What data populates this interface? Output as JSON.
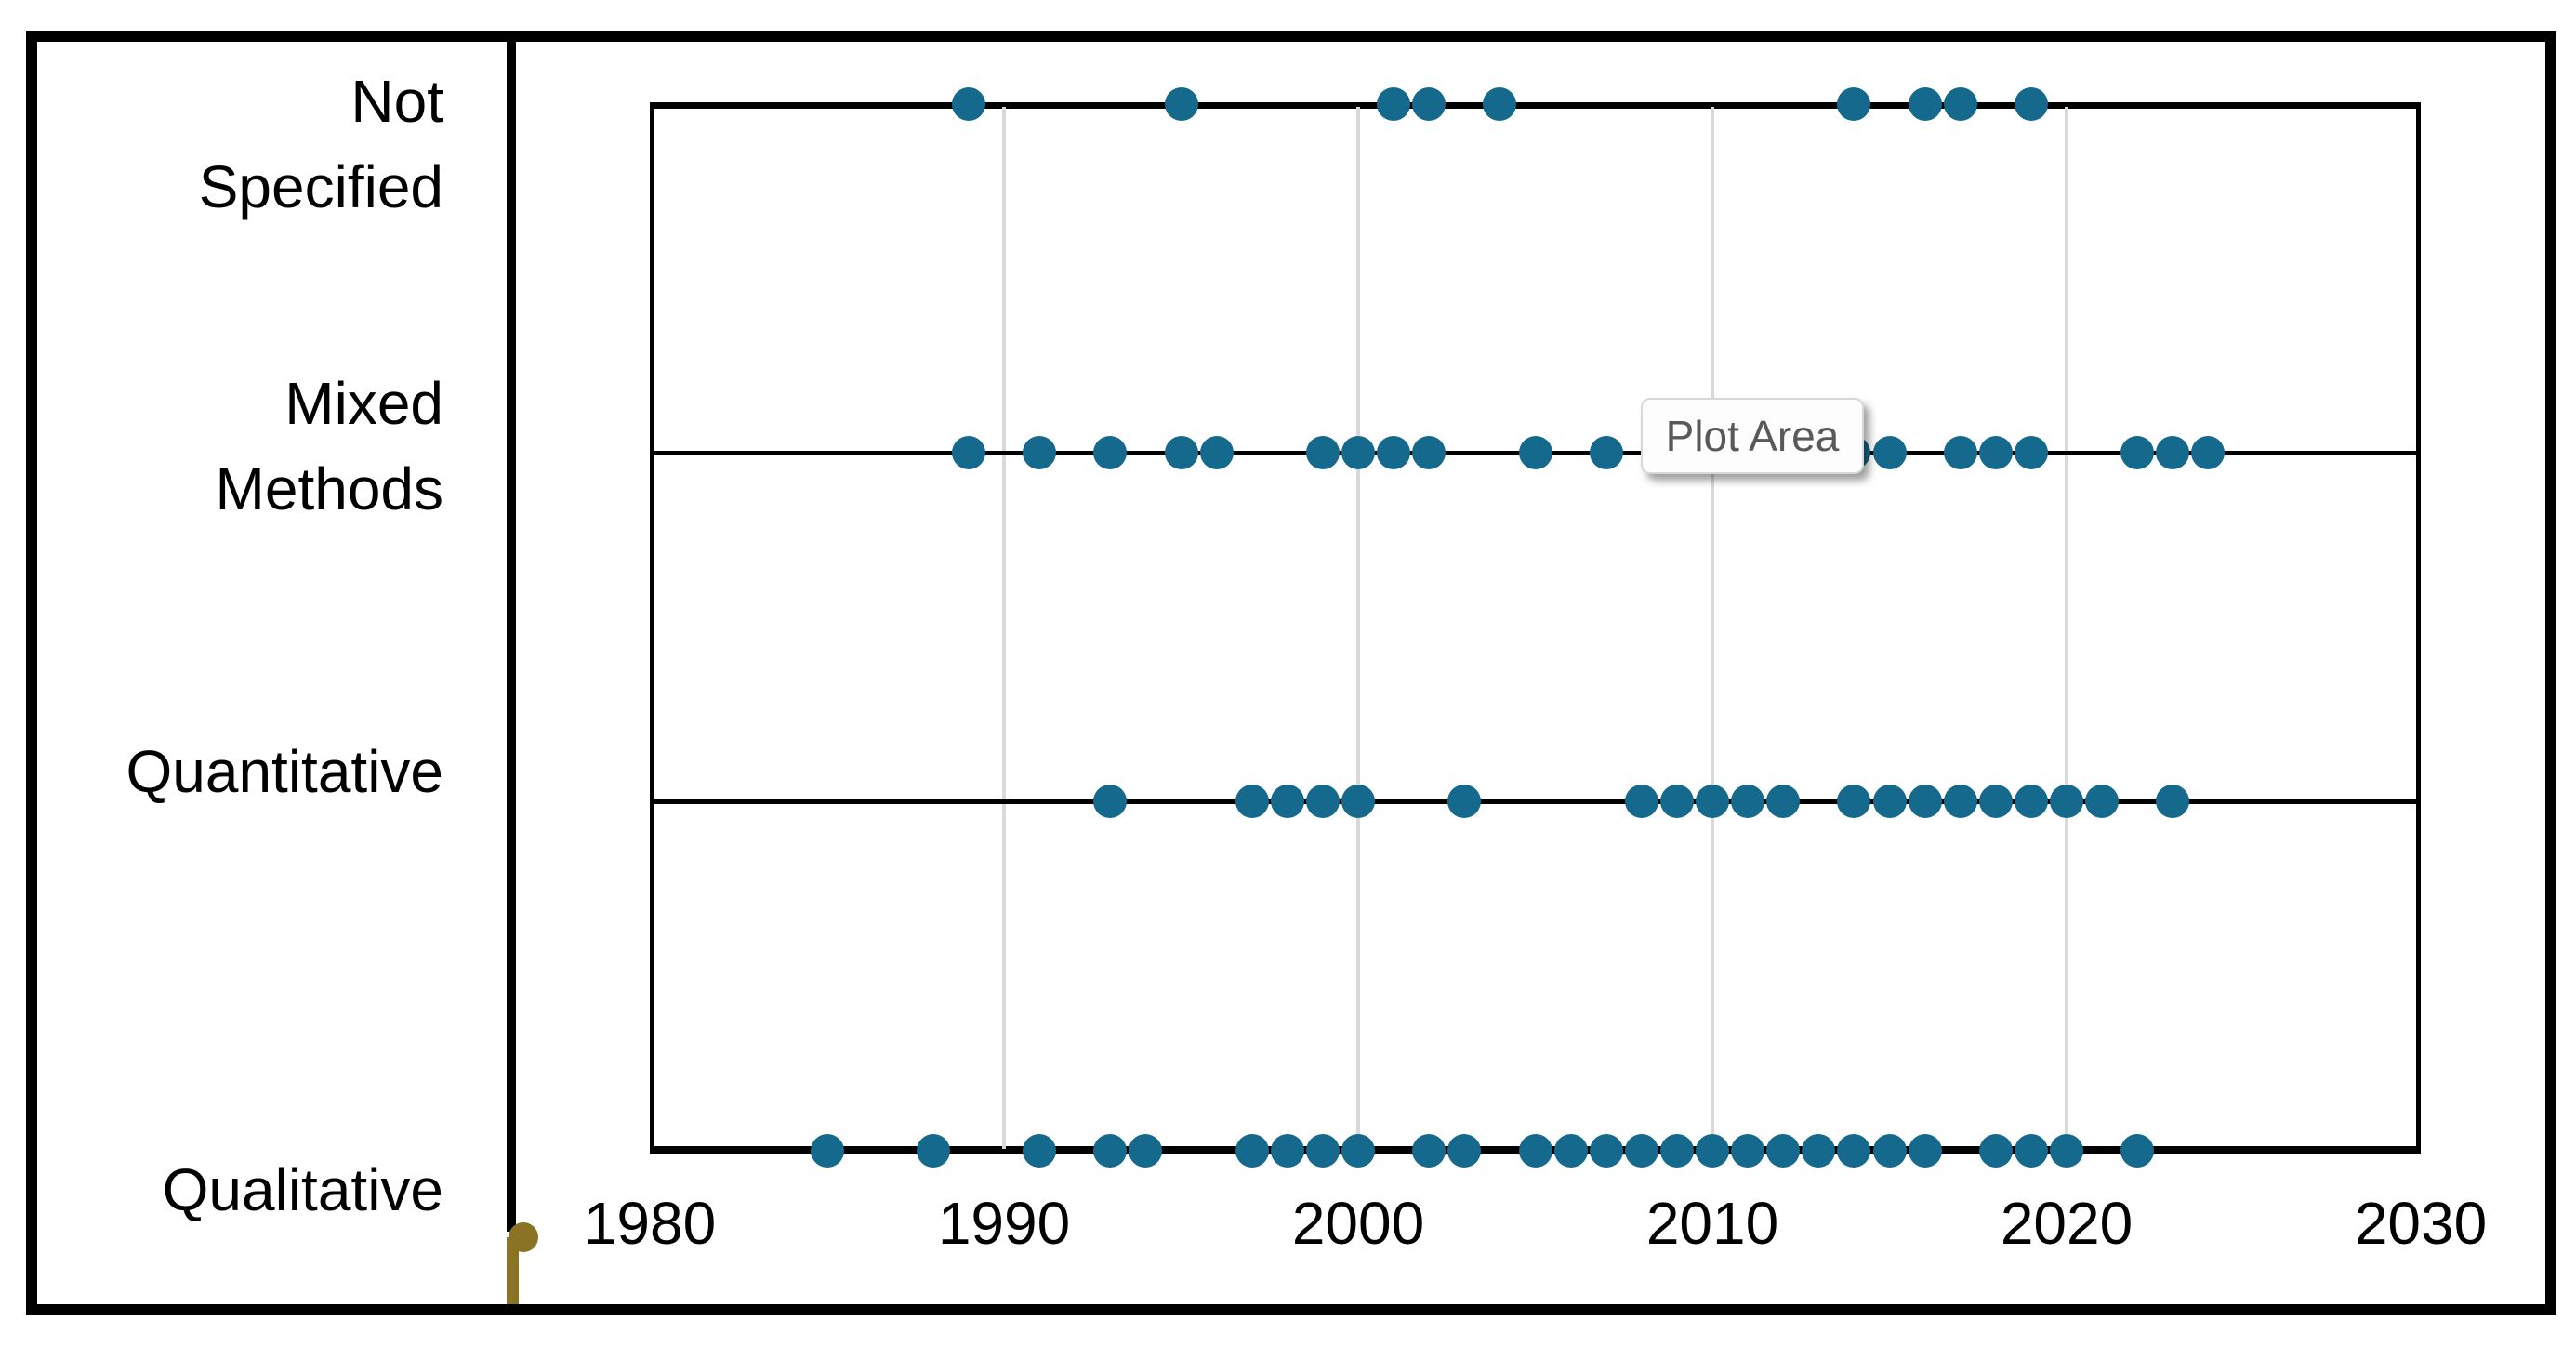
{
  "tooltip": {
    "label": "Plot Area"
  },
  "chart_data": {
    "type": "scatter",
    "subtype": "categorical-dot-timeline",
    "title": "",
    "xlabel": "",
    "ylabel": "",
    "x_axis": {
      "min": 1980,
      "max": 2030,
      "tick_interval": 10,
      "tick_labels": [
        "1980",
        "1990",
        "2000",
        "2010",
        "2020",
        "2030"
      ]
    },
    "gridline_years": [
      1990,
      2000,
      2010,
      2020
    ],
    "grid": "vertical gridlines at decades",
    "legend": "none",
    "categories": [
      "Not Specified",
      "Mixed Methods",
      "Quantitative",
      "Qualitative"
    ],
    "category_label_lines": [
      [
        "Not",
        "Specified"
      ],
      [
        "Mixed",
        "Methods"
      ],
      [
        "Quantitative"
      ],
      [
        "Qualitative"
      ]
    ],
    "series": [
      {
        "name": "Not Specified",
        "years": [
          1989,
          1995,
          2001,
          2002,
          2004,
          2014,
          2016,
          2017,
          2019
        ]
      },
      {
        "name": "Mixed Methods",
        "years": [
          1989,
          1991,
          1993,
          1995,
          1996,
          1999,
          2000,
          2001,
          2002,
          2005,
          2007,
          2014,
          2015,
          2017,
          2018,
          2019,
          2022,
          2023,
          2024
        ]
      },
      {
        "name": "Quantitative",
        "years": [
          1993,
          1997,
          1998,
          1999,
          2000,
          2003,
          2008,
          2009,
          2010,
          2011,
          2012,
          2014,
          2015,
          2016,
          2017,
          2018,
          2019,
          2020,
          2021,
          2023
        ]
      },
      {
        "name": "Qualitative",
        "years": [
          1985,
          1988,
          1991,
          1993,
          1994,
          1997,
          1998,
          1999,
          2000,
          2002,
          2003,
          2005,
          2006,
          2007,
          2008,
          2009,
          2010,
          2011,
          2012,
          2013,
          2014,
          2015,
          2016,
          2018,
          2019,
          2020,
          2022
        ]
      }
    ],
    "colors": {
      "dot": "#15698c",
      "stray_marker": "#8a7324",
      "gridline": "#d9d9d9",
      "axis_line": "#000000",
      "tooltip_text": "#595959",
      "tooltip_background": "#fdfdfd"
    }
  }
}
